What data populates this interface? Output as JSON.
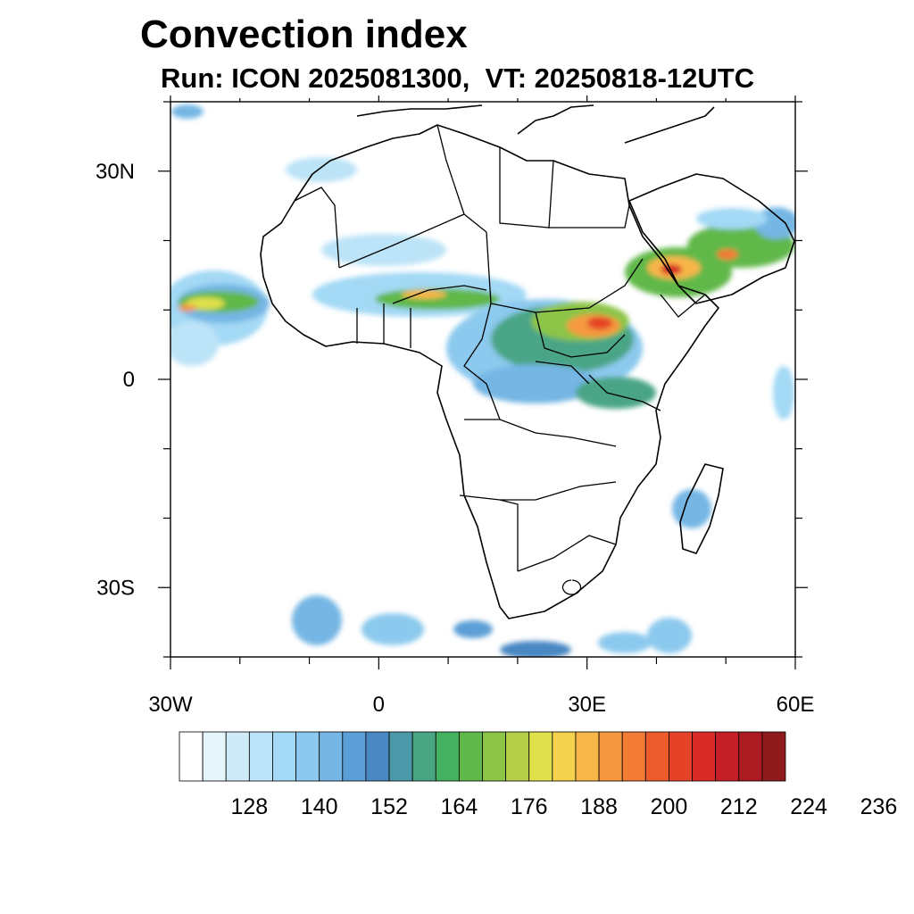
{
  "title": "Convection index",
  "subtitle": "Run: ICON 2025081300,  VT: 20250818-12UTC",
  "map": {
    "lon_range": [
      -30,
      60
    ],
    "lat_range": [
      -40,
      40
    ],
    "lat_ticks": [
      {
        "value": 30,
        "label": "30N"
      },
      {
        "value": 0,
        "label": "0"
      },
      {
        "value": -30,
        "label": "30S"
      }
    ],
    "lon_ticks": [
      {
        "value": -30,
        "label": "30W"
      },
      {
        "value": 0,
        "label": "0"
      },
      {
        "value": 30,
        "label": "30E"
      },
      {
        "value": 60,
        "label": "60E"
      }
    ]
  },
  "colorbar": {
    "colors": [
      "#ffffff",
      "#e6f4fb",
      "#d0ebf8",
      "#bce3f7",
      "#a3d9f5",
      "#8cc9ee",
      "#75b6e4",
      "#5c9fd6",
      "#4a88c2",
      "#4b98a8",
      "#4aa585",
      "#45b060",
      "#60b84a",
      "#8cc447",
      "#b5d048",
      "#dfe04b",
      "#f4d24d",
      "#f7b64a",
      "#f69840",
      "#f27b36",
      "#ec5c2c",
      "#e44328",
      "#d92b28",
      "#c41e26",
      "#ab1b22",
      "#8f1a1b"
    ],
    "labels": [
      "128",
      "140",
      "152",
      "164",
      "176",
      "188",
      "200",
      "212",
      "224",
      "236"
    ]
  }
}
